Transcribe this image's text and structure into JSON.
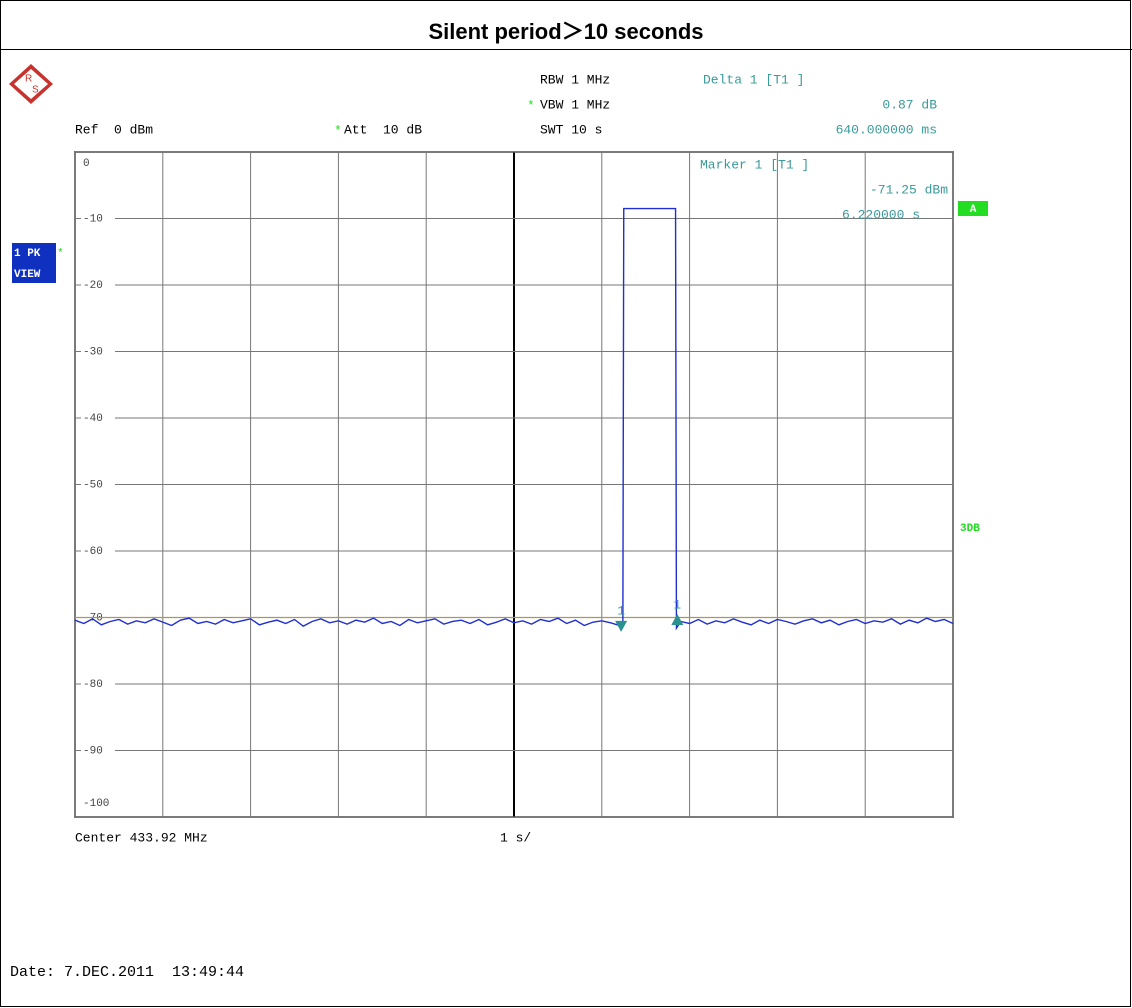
{
  "chart_data": {
    "type": "line",
    "title": "Silent period＞10 seconds",
    "settings": {
      "rbw": "RBW 1 MHz",
      "vbw_flag": "*",
      "vbw": "VBW 1 MHz",
      "swt": "SWT 10 s",
      "ref": "Ref  0 dBm",
      "att_flag": "*",
      "att": "Att  10 dB"
    },
    "delta": {
      "title": "Delta 1 [T1 ]",
      "level": "0.87 dB",
      "time": "640.000000 ms"
    },
    "marker": {
      "title": "Marker 1 [T1 ]",
      "level": "-71.25 dBm",
      "time": "6.220000 s"
    },
    "trace_badge": {
      "line1": "1 PK",
      "flag": "*",
      "line2": "VIEW"
    },
    "side_badge": "A",
    "side_label": "3DB",
    "x_label": "Center 433.92 MHz",
    "x_scale": "1 s/",
    "date": "Date: 7.DEC.2011  13:49:44",
    "xlim": [
      0,
      10
    ],
    "xticks": [
      0,
      1,
      2,
      3,
      4,
      5,
      6,
      7,
      8,
      9,
      10
    ],
    "ylim": [
      -100,
      0
    ],
    "yticks": [
      0,
      -10,
      -20,
      -30,
      -40,
      -50,
      -60,
      -70,
      -80,
      -90,
      -100
    ],
    "grid": true,
    "threshold_line": -70,
    "series": [
      {
        "color": "#1f2fd0",
        "x": [
          0,
          0.1,
          0.2,
          0.3,
          0.4,
          0.5,
          0.6,
          0.7,
          0.8,
          0.9,
          1.0,
          1.1,
          1.2,
          1.3,
          1.4,
          1.5,
          1.6,
          1.7,
          1.8,
          1.9,
          2.0,
          2.1,
          2.2,
          2.3,
          2.4,
          2.5,
          2.6,
          2.7,
          2.8,
          2.9,
          3.0,
          3.1,
          3.2,
          3.3,
          3.4,
          3.5,
          3.6,
          3.7,
          3.8,
          3.9,
          4.0,
          4.1,
          4.2,
          4.3,
          4.4,
          4.5,
          4.6,
          4.7,
          4.8,
          4.9,
          5.0,
          5.1,
          5.2,
          5.3,
          5.4,
          5.5,
          5.6,
          5.7,
          5.8,
          5.9,
          6.0,
          6.1,
          6.2,
          6.24,
          6.25,
          6.84,
          6.85,
          6.9,
          7.0,
          7.1,
          7.2,
          7.3,
          7.4,
          7.5,
          7.6,
          7.7,
          7.8,
          7.9,
          8.0,
          8.1,
          8.2,
          8.3,
          8.4,
          8.5,
          8.6,
          8.7,
          8.8,
          8.9,
          9.0,
          9.1,
          9.2,
          9.3,
          9.4,
          9.5,
          9.6,
          9.7,
          9.8,
          9.9,
          10.0
        ],
        "values": [
          -70.4,
          -70.9,
          -70.2,
          -71.1,
          -70.6,
          -70.3,
          -71.0,
          -70.5,
          -70.8,
          -70.2,
          -70.7,
          -71.2,
          -70.4,
          -70.1,
          -70.9,
          -70.6,
          -71.0,
          -70.3,
          -70.8,
          -70.5,
          -70.2,
          -71.1,
          -70.7,
          -70.4,
          -70.9,
          -70.3,
          -71.3,
          -70.6,
          -70.2,
          -70.8,
          -70.5,
          -71.0,
          -70.4,
          -70.7,
          -70.1,
          -70.9,
          -70.6,
          -71.2,
          -70.3,
          -70.8,
          -70.5,
          -70.2,
          -71.0,
          -70.6,
          -70.4,
          -70.9,
          -70.3,
          -71.1,
          -70.7,
          -70.2,
          -70.8,
          -70.5,
          -71.0,
          -70.3,
          -70.6,
          -70.1,
          -70.9,
          -70.4,
          -71.2,
          -70.7,
          -70.5,
          -70.8,
          -71.2,
          -71.2,
          -8.5,
          -8.5,
          -71.6,
          -70.6,
          -70.9,
          -70.3,
          -71.0,
          -70.5,
          -70.8,
          -70.2,
          -70.7,
          -71.1,
          -70.4,
          -70.9,
          -70.3,
          -70.6,
          -71.0,
          -70.5,
          -70.2,
          -70.8,
          -70.4,
          -71.1,
          -70.6,
          -70.3,
          -70.9,
          -70.5,
          -70.7,
          -70.2,
          -71.0,
          -70.4,
          -70.8,
          -70.1,
          -70.6,
          -70.3,
          -70.9
        ]
      }
    ],
    "markers": [
      {
        "label": "1",
        "x": 6.22,
        "y": -71.25,
        "shape": "down"
      },
      {
        "label": "1",
        "x": 6.86,
        "y": -70.38,
        "shape": "up"
      }
    ]
  }
}
